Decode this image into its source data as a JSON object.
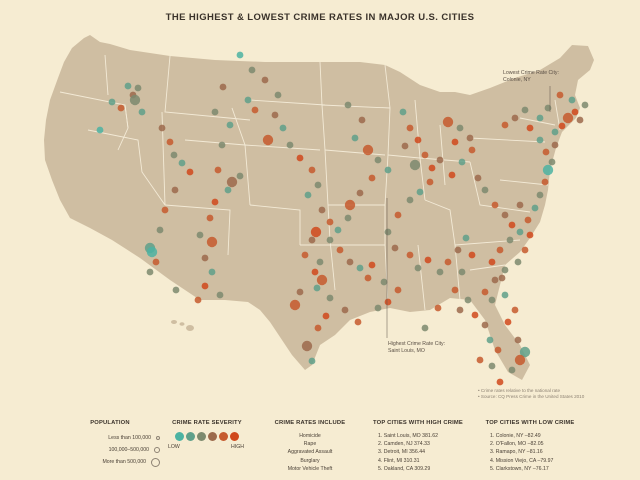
{
  "title": "THE HIGHEST & LOWEST CRIME RATES IN MAJOR U.S. CITIES",
  "annotations": {
    "lowest": [
      "Lowest Crime Rate City:",
      "Colonie, NY"
    ],
    "highest": [
      "Highest Crime Rate City:",
      "Saint Louis, MO"
    ]
  },
  "notes": [
    "• Crime rates relative to the national rate",
    "• Source: CQ Press Crime in the United States 2010"
  ],
  "colors": {
    "background": "#f6ecd2",
    "land": "#cfbea2",
    "state_lines": "#f3ead6",
    "severity": [
      "#4cb3a2",
      "#5fa08a",
      "#7d8a6e",
      "#9c6a4c",
      "#c65a2e",
      "#d0491c"
    ]
  },
  "legend": {
    "population": {
      "title": "POPULATION",
      "items": [
        {
          "label": "Less than 100,000",
          "size": 4
        },
        {
          "label": "100,000–500,000",
          "size": 6
        },
        {
          "label": "More than 500,000",
          "size": 9
        }
      ]
    },
    "severity": {
      "title": "CRIME RATE SEVERITY",
      "low": "LOW",
      "high": "HIGH"
    },
    "includes": {
      "title": "CRIME RATES INCLUDE",
      "items": [
        "Homicide",
        "Rape",
        "Aggravated Assault",
        "Burglary",
        "Motor Vehicle Theft"
      ]
    },
    "top_high": {
      "title": "TOP CITIES WITH HIGH CRIME",
      "items": [
        "1. Saint Louis, MO   381.62",
        "2. Camden, NJ   374.33",
        "3. Detroit, MI   356.44",
        "4. Flint, MI   310.31",
        "5. Oakland, CA   309.29"
      ]
    },
    "top_low": {
      "title": "TOP CITIES WITH LOW CRIME",
      "items": [
        "1. Colonie, NY  –82.49",
        "2. O'Fallon, MO  –82.05",
        "3. Ramapo, NY  –81.16",
        "4. Mission Viejo, CA  –79.97",
        "5. Clarkstown, NY  –76.17"
      ]
    }
  },
  "cities": [
    [
      138,
      88,
      1,
      2
    ],
    [
      128,
      86,
      1,
      1
    ],
    [
      133,
      95,
      1,
      3
    ],
    [
      135,
      100,
      2,
      2
    ],
    [
      142,
      112,
      1,
      1
    ],
    [
      112,
      102,
      1,
      1
    ],
    [
      121,
      108,
      1,
      4
    ],
    [
      100,
      130,
      1,
      0
    ],
    [
      162,
      128,
      1,
      3
    ],
    [
      170,
      142,
      1,
      4
    ],
    [
      174,
      155,
      1,
      2
    ],
    [
      182,
      163,
      1,
      1
    ],
    [
      190,
      172,
      1,
      5
    ],
    [
      175,
      190,
      1,
      3
    ],
    [
      165,
      210,
      1,
      4
    ],
    [
      160,
      230,
      1,
      2
    ],
    [
      150,
      248,
      2,
      1
    ],
    [
      152,
      252,
      2,
      0
    ],
    [
      156,
      262,
      1,
      4
    ],
    [
      150,
      272,
      1,
      2
    ],
    [
      223,
      87,
      1,
      3
    ],
    [
      215,
      112,
      1,
      2
    ],
    [
      230,
      125,
      1,
      1
    ],
    [
      222,
      145,
      1,
      2
    ],
    [
      218,
      170,
      1,
      4
    ],
    [
      232,
      182,
      2,
      3
    ],
    [
      240,
      176,
      1,
      2
    ],
    [
      228,
      190,
      1,
      1
    ],
    [
      215,
      202,
      1,
      5
    ],
    [
      210,
      218,
      1,
      4
    ],
    [
      200,
      235,
      1,
      2
    ],
    [
      212,
      242,
      2,
      4
    ],
    [
      205,
      258,
      1,
      3
    ],
    [
      212,
      272,
      1,
      1
    ],
    [
      205,
      286,
      1,
      5
    ],
    [
      220,
      295,
      1,
      2
    ],
    [
      198,
      300,
      1,
      4
    ],
    [
      176,
      290,
      1,
      2
    ],
    [
      240,
      55,
      1,
      0
    ],
    [
      252,
      70,
      1,
      2
    ],
    [
      265,
      80,
      1,
      3
    ],
    [
      248,
      100,
      1,
      1
    ],
    [
      255,
      110,
      1,
      4
    ],
    [
      278,
      95,
      1,
      2
    ],
    [
      275,
      115,
      1,
      3
    ],
    [
      283,
      128,
      1,
      1
    ],
    [
      268,
      140,
      2,
      4
    ],
    [
      290,
      145,
      1,
      2
    ],
    [
      300,
      158,
      1,
      5
    ],
    [
      312,
      170,
      1,
      4
    ],
    [
      318,
      185,
      1,
      2
    ],
    [
      308,
      195,
      1,
      1
    ],
    [
      322,
      210,
      1,
      3
    ],
    [
      330,
      222,
      1,
      4
    ],
    [
      316,
      232,
      2,
      5
    ],
    [
      312,
      240,
      1,
      3
    ],
    [
      305,
      255,
      1,
      4
    ],
    [
      320,
      262,
      1,
      2
    ],
    [
      315,
      272,
      1,
      5
    ],
    [
      322,
      280,
      2,
      4
    ],
    [
      317,
      288,
      1,
      1
    ],
    [
      300,
      292,
      1,
      3
    ],
    [
      295,
      305,
      2,
      4
    ],
    [
      330,
      298,
      1,
      2
    ],
    [
      326,
      316,
      1,
      5
    ],
    [
      318,
      328,
      1,
      4
    ],
    [
      307,
      346,
      2,
      3
    ],
    [
      312,
      361,
      1,
      1
    ],
    [
      348,
      105,
      1,
      2
    ],
    [
      362,
      120,
      1,
      3
    ],
    [
      355,
      138,
      1,
      1
    ],
    [
      368,
      150,
      2,
      4
    ],
    [
      378,
      160,
      1,
      2
    ],
    [
      388,
      170,
      1,
      1
    ],
    [
      372,
      178,
      1,
      4
    ],
    [
      360,
      193,
      1,
      3
    ],
    [
      350,
      205,
      2,
      4
    ],
    [
      348,
      218,
      1,
      2
    ],
    [
      338,
      230,
      1,
      1
    ],
    [
      330,
      240,
      1,
      2
    ],
    [
      340,
      250,
      1,
      4
    ],
    [
      350,
      262,
      1,
      3
    ],
    [
      360,
      268,
      1,
      1
    ],
    [
      372,
      265,
      1,
      5
    ],
    [
      368,
      278,
      1,
      4
    ],
    [
      384,
      282,
      1,
      2
    ],
    [
      398,
      290,
      1,
      4
    ],
    [
      388,
      302,
      1,
      5
    ],
    [
      378,
      308,
      1,
      2
    ],
    [
      358,
      322,
      1,
      4
    ],
    [
      345,
      310,
      1,
      3
    ],
    [
      403,
      112,
      1,
      1
    ],
    [
      410,
      128,
      1,
      4
    ],
    [
      418,
      140,
      1,
      5
    ],
    [
      405,
      146,
      1,
      3
    ],
    [
      425,
      155,
      1,
      4
    ],
    [
      415,
      165,
      2,
      2
    ],
    [
      432,
      168,
      1,
      5
    ],
    [
      440,
      160,
      1,
      3
    ],
    [
      430,
      182,
      1,
      4
    ],
    [
      420,
      192,
      1,
      1
    ],
    [
      410,
      200,
      1,
      2
    ],
    [
      398,
      215,
      1,
      4
    ],
    [
      388,
      232,
      1,
      2
    ],
    [
      395,
      248,
      1,
      3
    ],
    [
      410,
      255,
      1,
      4
    ],
    [
      418,
      268,
      1,
      2
    ],
    [
      428,
      260,
      1,
      5
    ],
    [
      440,
      272,
      1,
      2
    ],
    [
      448,
      262,
      1,
      4
    ],
    [
      458,
      250,
      1,
      3
    ],
    [
      466,
      238,
      1,
      1
    ],
    [
      472,
      255,
      1,
      5
    ],
    [
      462,
      272,
      1,
      2
    ],
    [
      455,
      290,
      1,
      4
    ],
    [
      468,
      300,
      1,
      2
    ],
    [
      475,
      315,
      1,
      5
    ],
    [
      485,
      325,
      1,
      3
    ],
    [
      490,
      340,
      1,
      1
    ],
    [
      480,
      360,
      1,
      4
    ],
    [
      460,
      310,
      1,
      3
    ],
    [
      438,
      308,
      1,
      4
    ],
    [
      425,
      328,
      1,
      2
    ],
    [
      448,
      122,
      2,
      4
    ],
    [
      460,
      128,
      1,
      2
    ],
    [
      470,
      138,
      1,
      3
    ],
    [
      455,
      142,
      1,
      5
    ],
    [
      472,
      150,
      1,
      4
    ],
    [
      462,
      162,
      1,
      1
    ],
    [
      452,
      175,
      1,
      5
    ],
    [
      478,
      178,
      1,
      3
    ],
    [
      485,
      190,
      1,
      2
    ],
    [
      495,
      205,
      1,
      4
    ],
    [
      505,
      215,
      1,
      3
    ],
    [
      512,
      225,
      1,
      5
    ],
    [
      520,
      232,
      1,
      1
    ],
    [
      510,
      240,
      1,
      2
    ],
    [
      500,
      250,
      1,
      4
    ],
    [
      492,
      262,
      1,
      5
    ],
    [
      505,
      270,
      1,
      2
    ],
    [
      495,
      280,
      1,
      3
    ],
    [
      485,
      292,
      1,
      4
    ],
    [
      492,
      300,
      1,
      2
    ],
    [
      505,
      125,
      1,
      4
    ],
    [
      515,
      118,
      1,
      3
    ],
    [
      525,
      110,
      1,
      2
    ],
    [
      530,
      128,
      1,
      5
    ],
    [
      540,
      140,
      1,
      1
    ],
    [
      546,
      152,
      1,
      4
    ],
    [
      552,
      162,
      1,
      2
    ],
    [
      548,
      170,
      2,
      0
    ],
    [
      555,
      132,
      1,
      1
    ],
    [
      562,
      126,
      1,
      5
    ],
    [
      568,
      118,
      2,
      4
    ],
    [
      575,
      112,
      1,
      5
    ],
    [
      580,
      120,
      1,
      3
    ],
    [
      585,
      105,
      1,
      2
    ],
    [
      572,
      100,
      1,
      1
    ],
    [
      560,
      95,
      1,
      4
    ],
    [
      548,
      108,
      1,
      2
    ],
    [
      540,
      118,
      1,
      1
    ],
    [
      555,
      145,
      1,
      3
    ],
    [
      545,
      182,
      1,
      4
    ],
    [
      540,
      195,
      1,
      2
    ],
    [
      535,
      208,
      1,
      1
    ],
    [
      528,
      220,
      1,
      4
    ],
    [
      520,
      205,
      1,
      3
    ],
    [
      530,
      235,
      1,
      5
    ],
    [
      525,
      250,
      1,
      4
    ],
    [
      518,
      262,
      1,
      2
    ],
    [
      502,
      278,
      1,
      3
    ],
    [
      505,
      295,
      1,
      1
    ],
    [
      515,
      310,
      1,
      4
    ],
    [
      508,
      322,
      1,
      5
    ],
    [
      518,
      340,
      1,
      3
    ],
    [
      525,
      352,
      2,
      1
    ],
    [
      520,
      360,
      2,
      4
    ],
    [
      512,
      370,
      1,
      2
    ],
    [
      500,
      382,
      1,
      5
    ],
    [
      492,
      366,
      1,
      2
    ],
    [
      498,
      350,
      1,
      4
    ]
  ]
}
